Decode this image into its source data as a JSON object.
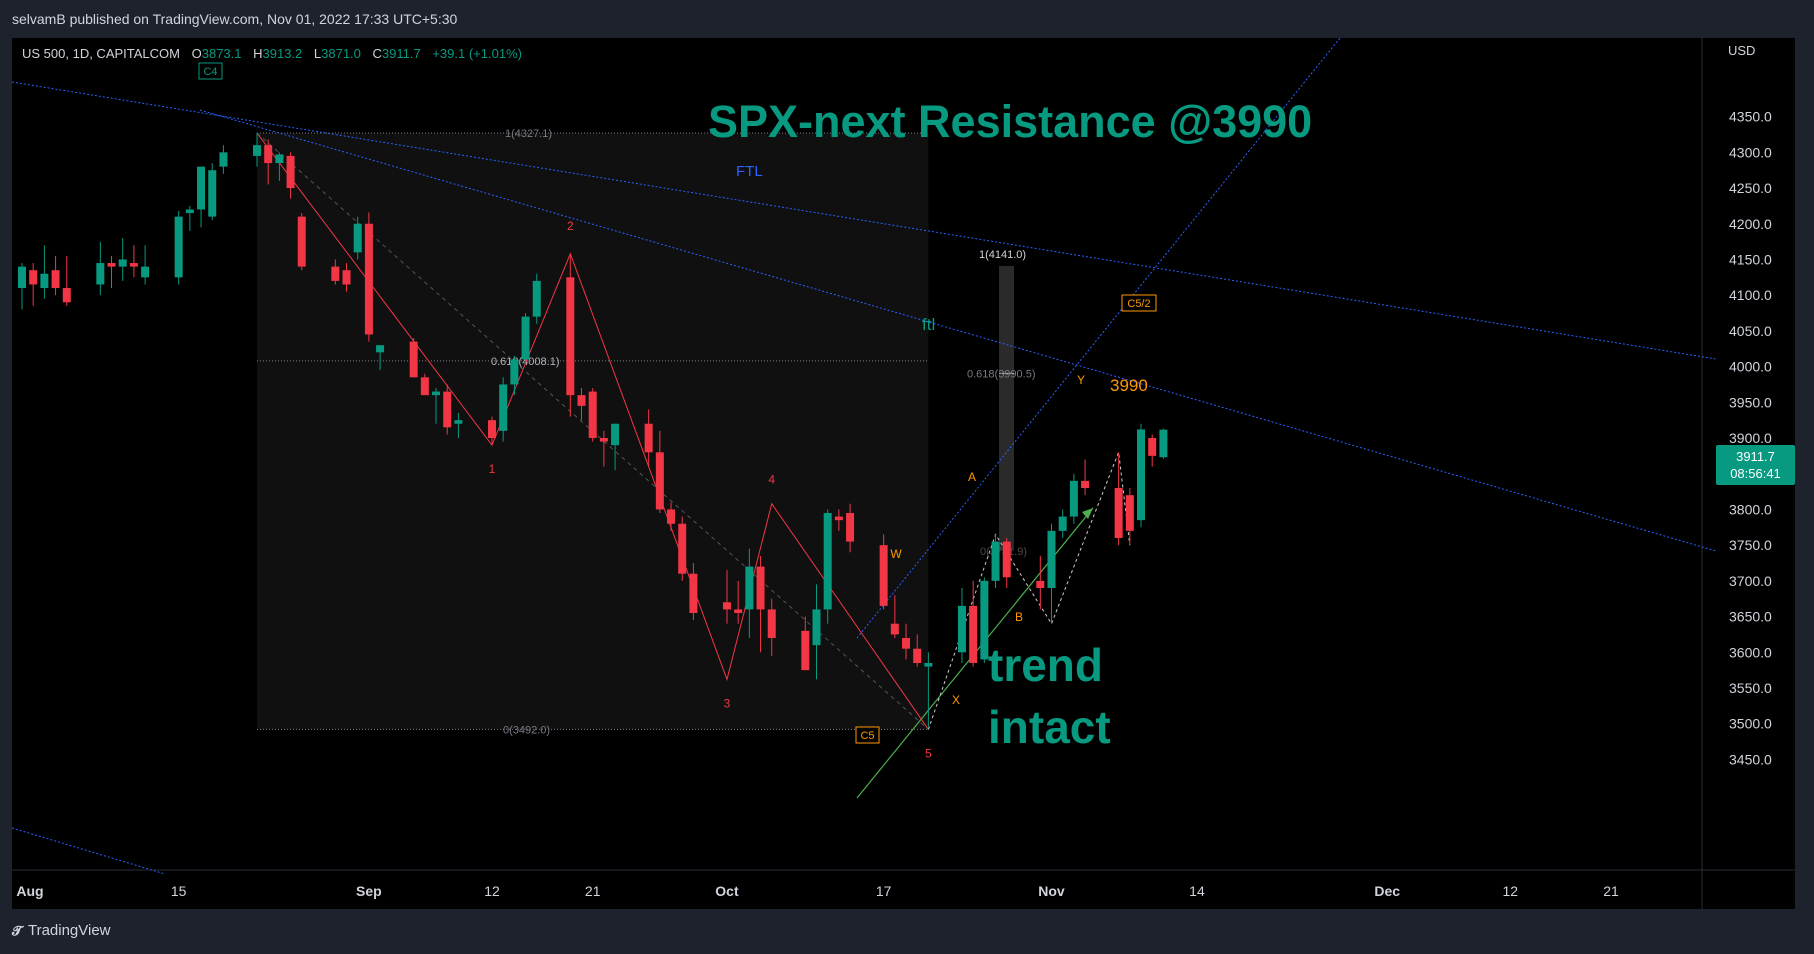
{
  "header": {
    "published": "selvamB published on TradingView.com, Nov 01, 2022 17:33 UTC+5:30"
  },
  "footer": {
    "brand": "TradingView"
  },
  "legend": {
    "symbol": "US 500, 1D, CAPITALCOM",
    "o_label": "O",
    "open": "3873.1",
    "h_label": "H",
    "high": "3913.2",
    "l_label": "L",
    "low": "3871.0",
    "c_label": "C",
    "close": "3911.7",
    "change": "+39.1 (+1.01%)"
  },
  "colors": {
    "background": "#000000",
    "frame": "#1e222d",
    "up": "#089981",
    "down": "#f23645",
    "text": "#d1d4dc",
    "channel": "#2962ff",
    "wave_red": "#f23645",
    "wave_orange": "#ff9800",
    "annotation_teal": "#089981",
    "trend": "#4caf50",
    "fib": "#787b86"
  },
  "annotations": {
    "title": "SPX-next Resistance @3990",
    "ftl_upper": "FTL",
    "ftl_lower": "ftl",
    "trend": "trend",
    "intact": "intact",
    "level": "3990",
    "degree_top": "C4",
    "degree_bottom": "C5",
    "degree_right": "C5/2"
  },
  "fib_labels": {
    "top": "1(4327.1)",
    "mid": "0.618(4008.1)",
    "bottom": "0(3492.0)",
    "proj_top": "1(4141.0)",
    "proj_mid": "0.618(3990.5)",
    "proj_bottom": "0(3741.9)"
  },
  "price_badge": {
    "price": "3911.7",
    "countdown": "08:56:41"
  },
  "chart_data": {
    "type": "candlestick",
    "currency": "USD",
    "ylim": [
      3420,
      4390
    ],
    "yticks": [
      3450,
      3500,
      3550,
      3600,
      3650,
      3700,
      3750,
      3800,
      3850,
      3900,
      3950,
      4000,
      4050,
      4100,
      4150,
      4200,
      4250,
      4300,
      4350
    ],
    "xtick_labels": [
      "Aug",
      "15",
      "Sep",
      "12",
      "21",
      "Oct",
      "17",
      "Nov",
      "14",
      "Dec",
      "12",
      "21"
    ],
    "xtick_dates": [
      "2022-08-01",
      "2022-08-15",
      "2022-09-01",
      "2022-09-12",
      "2022-09-21",
      "2022-10-03",
      "2022-10-17",
      "2022-11-01",
      "2022-11-14",
      "2022-12-01",
      "2022-12-12",
      "2022-12-21"
    ],
    "candles": [
      {
        "d": "2022-08-01",
        "o": 4110,
        "h": 4145,
        "l": 4080,
        "c": 4140
      },
      {
        "d": "2022-08-02",
        "o": 4135,
        "h": 4145,
        "l": 4085,
        "c": 4115
      },
      {
        "d": "2022-08-03",
        "o": 4110,
        "h": 4170,
        "l": 4095,
        "c": 4130
      },
      {
        "d": "2022-08-04",
        "o": 4135,
        "h": 4155,
        "l": 4100,
        "c": 4110
      },
      {
        "d": "2022-08-05",
        "o": 4110,
        "h": 4155,
        "l": 4085,
        "c": 4090
      },
      {
        "d": "2022-08-08",
        "o": 4115,
        "h": 4175,
        "l": 4100,
        "c": 4145
      },
      {
        "d": "2022-08-09",
        "o": 4145,
        "h": 4155,
        "l": 4110,
        "c": 4140
      },
      {
        "d": "2022-08-10",
        "o": 4140,
        "h": 4180,
        "l": 4120,
        "c": 4150
      },
      {
        "d": "2022-08-11",
        "o": 4145,
        "h": 4170,
        "l": 4125,
        "c": 4140
      },
      {
        "d": "2022-08-12",
        "o": 4125,
        "h": 4170,
        "l": 4115,
        "c": 4140
      },
      {
        "d": "2022-08-15",
        "o": 4125,
        "h": 4218,
        "l": 4115,
        "c": 4210
      },
      {
        "d": "2022-08-16",
        "o": 4215,
        "h": 4225,
        "l": 4190,
        "c": 4220
      },
      {
        "d": "2022-08-17",
        "o": 4220,
        "h": 4275,
        "l": 4195,
        "c": 4280
      },
      {
        "d": "2022-08-18",
        "o": 4210,
        "h": 4285,
        "l": 4205,
        "c": 4275
      },
      {
        "d": "2022-08-19",
        "o": 4280,
        "h": 4310,
        "l": 4270,
        "c": 4300
      },
      {
        "d": "2022-08-22",
        "o": 4295,
        "h": 4327,
        "l": 4280,
        "c": 4310
      },
      {
        "d": "2022-08-23",
        "o": 4310,
        "h": 4318,
        "l": 4255,
        "c": 4285
      },
      {
        "d": "2022-08-24",
        "o": 4285,
        "h": 4300,
        "l": 4260,
        "c": 4297
      },
      {
        "d": "2022-08-25",
        "o": 4295,
        "h": 4300,
        "l": 4235,
        "c": 4250
      },
      {
        "d": "2022-08-26",
        "o": 4210,
        "h": 4215,
        "l": 4135,
        "c": 4140
      },
      {
        "d": "2022-08-29",
        "o": 4140,
        "h": 4150,
        "l": 4115,
        "c": 4120
      },
      {
        "d": "2022-08-30",
        "o": 4135,
        "h": 4145,
        "l": 4105,
        "c": 4115
      },
      {
        "d": "2022-08-31",
        "o": 4160,
        "h": 4210,
        "l": 4150,
        "c": 4200
      },
      {
        "d": "2022-09-01",
        "o": 4200,
        "h": 4216,
        "l": 4035,
        "c": 4045
      },
      {
        "d": "2022-09-02",
        "o": 4020,
        "h": 4025,
        "l": 3995,
        "c": 4030
      },
      {
        "d": "2022-09-05",
        "o": 4035,
        "h": 4040,
        "l": 3985,
        "c": 3985
      },
      {
        "d": "2022-09-06",
        "o": 3985,
        "h": 3990,
        "l": 3965,
        "c": 3960
      },
      {
        "d": "2022-09-07",
        "o": 3960,
        "h": 3970,
        "l": 3920,
        "c": 3965
      },
      {
        "d": "2022-09-08",
        "o": 3965,
        "h": 3975,
        "l": 3905,
        "c": 3915
      },
      {
        "d": "2022-09-09",
        "o": 3920,
        "h": 3935,
        "l": 3900,
        "c": 3925
      },
      {
        "d": "2022-09-12",
        "o": 3925,
        "h": 3930,
        "l": 3890,
        "c": 3900
      },
      {
        "d": "2022-09-13",
        "o": 3910,
        "h": 3985,
        "l": 3895,
        "c": 3975
      },
      {
        "d": "2022-09-14",
        "o": 3975,
        "h": 4015,
        "l": 3960,
        "c": 4010
      },
      {
        "d": "2022-09-15",
        "o": 4010,
        "h": 4075,
        "l": 4005,
        "c": 4070
      },
      {
        "d": "2022-09-16",
        "o": 4070,
        "h": 4130,
        "l": 4060,
        "c": 4120
      },
      {
        "d": "2022-09-19",
        "o": 4125,
        "h": 4158,
        "l": 3930,
        "c": 3960
      },
      {
        "d": "2022-09-20",
        "o": 3960,
        "h": 3970,
        "l": 3925,
        "c": 3945
      },
      {
        "d": "2022-09-21",
        "o": 3965,
        "h": 3970,
        "l": 3895,
        "c": 3900
      },
      {
        "d": "2022-09-22",
        "o": 3900,
        "h": 3910,
        "l": 3860,
        "c": 3895
      },
      {
        "d": "2022-09-23",
        "o": 3890,
        "h": 3920,
        "l": 3855,
        "c": 3920
      },
      {
        "d": "2022-09-26",
        "o": 3920,
        "h": 3940,
        "l": 3860,
        "c": 3880
      },
      {
        "d": "2022-09-27",
        "o": 3880,
        "h": 3910,
        "l": 3795,
        "c": 3800
      },
      {
        "d": "2022-09-28",
        "o": 3800,
        "h": 3810,
        "l": 3770,
        "c": 3780
      },
      {
        "d": "2022-09-29",
        "o": 3780,
        "h": 3790,
        "l": 3700,
        "c": 3710
      },
      {
        "d": "2022-09-30",
        "o": 3710,
        "h": 3725,
        "l": 3645,
        "c": 3655
      },
      {
        "d": "2022-10-03",
        "o": 3670,
        "h": 3715,
        "l": 3640,
        "c": 3660
      },
      {
        "d": "2022-10-04",
        "o": 3660,
        "h": 3700,
        "l": 3640,
        "c": 3655
      },
      {
        "d": "2022-10-05",
        "o": 3660,
        "h": 3745,
        "l": 3620,
        "c": 3720
      },
      {
        "d": "2022-10-06",
        "o": 3720,
        "h": 3735,
        "l": 3600,
        "c": 3660
      },
      {
        "d": "2022-10-07",
        "o": 3660,
        "h": 3675,
        "l": 3595,
        "c": 3620
      },
      {
        "d": "2022-10-10",
        "o": 3630,
        "h": 3650,
        "l": 3575,
        "c": 3575
      },
      {
        "d": "2022-10-11",
        "o": 3610,
        "h": 3695,
        "l": 3562,
        "c": 3660
      },
      {
        "d": "2022-10-12",
        "o": 3660,
        "h": 3800,
        "l": 3640,
        "c": 3795
      },
      {
        "d": "2022-10-13",
        "o": 3790,
        "h": 3800,
        "l": 3770,
        "c": 3785
      },
      {
        "d": "2022-10-14",
        "o": 3795,
        "h": 3808,
        "l": 3740,
        "c": 3755
      },
      {
        "d": "2022-10-17",
        "o": 3750,
        "h": 3765,
        "l": 3660,
        "c": 3665
      },
      {
        "d": "2022-10-18",
        "o": 3640,
        "h": 3680,
        "l": 3620,
        "c": 3625
      },
      {
        "d": "2022-10-19",
        "o": 3620,
        "h": 3640,
        "l": 3590,
        "c": 3605
      },
      {
        "d": "2022-10-20",
        "o": 3605,
        "h": 3625,
        "l": 3580,
        "c": 3585
      },
      {
        "d": "2022-10-21",
        "o": 3580,
        "h": 3600,
        "l": 3495,
        "c": 3585
      },
      {
        "d": "2022-10-24",
        "o": 3600,
        "h": 3690,
        "l": 3585,
        "c": 3665
      },
      {
        "d": "2022-10-25",
        "o": 3665,
        "h": 3700,
        "l": 3580,
        "c": 3585
      },
      {
        "d": "2022-10-26",
        "o": 3590,
        "h": 3705,
        "l": 3585,
        "c": 3700
      },
      {
        "d": "2022-10-27",
        "o": 3700,
        "h": 3765,
        "l": 3690,
        "c": 3755
      },
      {
        "d": "2022-10-28",
        "o": 3755,
        "h": 3760,
        "l": 3690,
        "c": 3705
      },
      {
        "d": "2022-10-31",
        "o": 3700,
        "h": 3735,
        "l": 3660,
        "c": 3690
      },
      {
        "d": "2022-11-01",
        "o": 3690,
        "h": 3780,
        "l": 3640,
        "c": 3770
      },
      {
        "d": "2022-11-02",
        "o": 3770,
        "h": 3800,
        "l": 3760,
        "c": 3790
      },
      {
        "d": "2022-11-03",
        "o": 3790,
        "h": 3850,
        "l": 3780,
        "c": 3840
      },
      {
        "d": "2022-11-04",
        "o": 3840,
        "h": 3870,
        "l": 3820,
        "c": 3830
      },
      {
        "d": "2022-11-07",
        "o": 3830,
        "h": 3880,
        "l": 3750,
        "c": 3760
      },
      {
        "d": "2022-11-08",
        "o": 3820,
        "h": 3830,
        "l": 3750,
        "c": 3770
      },
      {
        "d": "2022-11-09",
        "o": 3785,
        "h": 3920,
        "l": 3775,
        "c": 3912
      },
      {
        "d": "2022-11-10",
        "o": 3900,
        "h": 3905,
        "l": 3860,
        "c": 3875
      },
      {
        "d": "2022-11-11",
        "o": 3873.1,
        "h": 3913.2,
        "l": 3871.0,
        "c": 3911.7
      }
    ]
  }
}
